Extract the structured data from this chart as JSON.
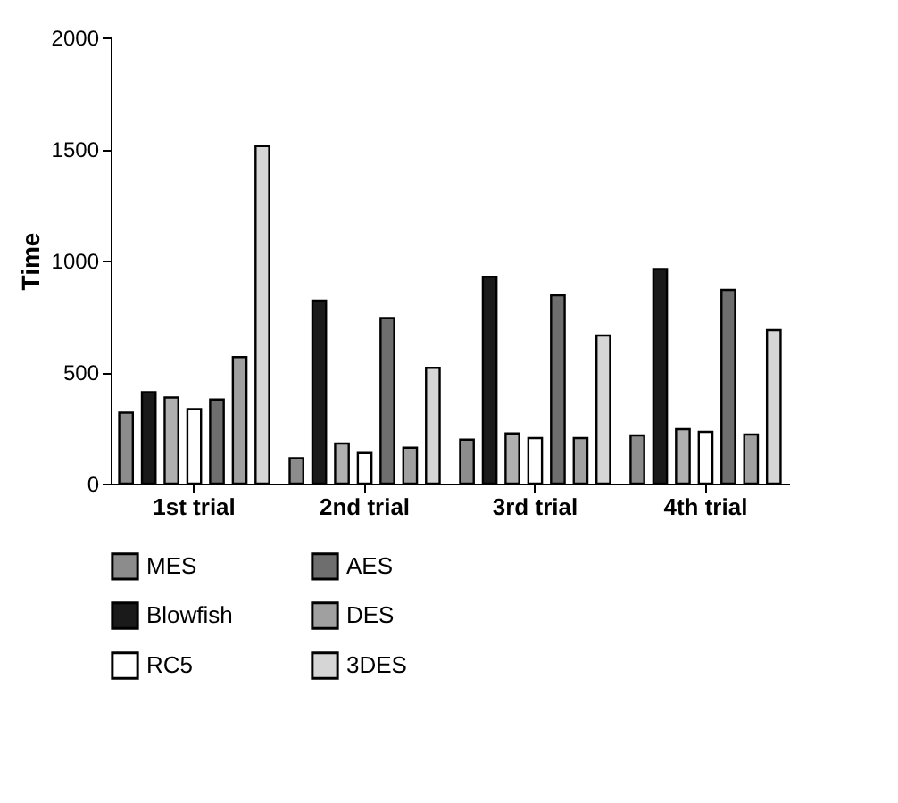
{
  "chart_data": {
    "type": "bar",
    "ylabel": "Time",
    "categories": [
      "1st trial",
      "2nd trial",
      "3rd trial",
      "4th trial"
    ],
    "ylim": [
      0,
      2000
    ],
    "yticks": [
      0,
      500,
      1000,
      1500,
      2000
    ],
    "grid": false,
    "legend": "bottom",
    "series": [
      {
        "name": "MES",
        "color": "#8c8c8c",
        "values": [
          318,
          114,
          197,
          216
        ]
      },
      {
        "name": "Blowfish",
        "color": "#1a1a1a",
        "values": [
          410,
          820,
          927,
          962
        ]
      },
      {
        "color": "#b0b0b0",
        "values": [
          386,
          180,
          225,
          244
        ]
      },
      {
        "name": "RC5",
        "color": "#ffffff",
        "values": [
          334,
          137,
          204,
          232
        ]
      },
      {
        "name": "AES",
        "color": "#6e6e6e",
        "values": [
          377,
          742,
          844,
          868
        ]
      },
      {
        "name": "DES",
        "color": "#a0a0a0",
        "values": [
          567,
          161,
          204,
          220
        ]
      },
      {
        "name": "3DES",
        "color": "#d6d6d6",
        "values": [
          1513,
          519,
          664,
          688
        ]
      }
    ]
  }
}
